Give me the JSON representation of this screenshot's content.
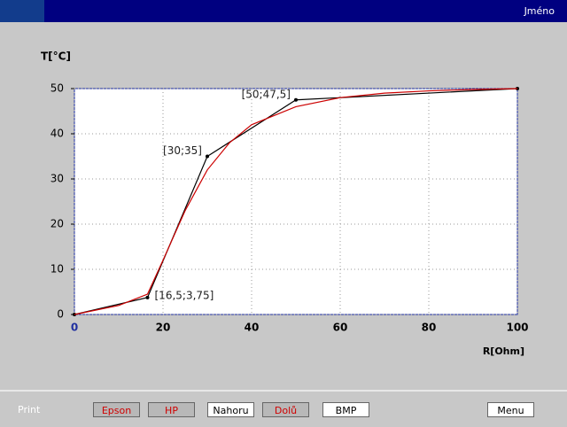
{
  "window": {
    "title": "Jméno"
  },
  "chart_data": {
    "type": "line",
    "xlabel": "R[Ohm]",
    "ylabel": "T[°C]",
    "xlim": [
      0,
      100
    ],
    "xticks": [
      0,
      20,
      40,
      60,
      80,
      100
    ],
    "ylim": [
      0,
      50
    ],
    "yticks": [
      0,
      10,
      20,
      30,
      40,
      50
    ],
    "grid": true,
    "series": [
      {
        "color": "#000000",
        "x": [
          0,
          16.5,
          30,
          50,
          100
        ],
        "values": [
          0,
          3.75,
          35,
          47.5,
          50
        ],
        "value_labels": [
          null,
          "[16,5;3,75]",
          "[30;35]",
          "[50;47,5]",
          null
        ]
      },
      {
        "color": "#cc0000",
        "x": [
          0,
          10,
          16.5,
          20,
          25,
          30,
          35,
          40,
          50,
          60,
          70,
          80,
          90,
          100
        ],
        "values": [
          0,
          2,
          4.5,
          12,
          23,
          32,
          38,
          42,
          46,
          48,
          49,
          49.5,
          49.8,
          50
        ]
      }
    ]
  },
  "toolbar": {
    "label": "Print",
    "buttons": [
      "Epson",
      "HP",
      "Nahoru",
      "Dolů",
      "BMP",
      "Menu"
    ]
  }
}
